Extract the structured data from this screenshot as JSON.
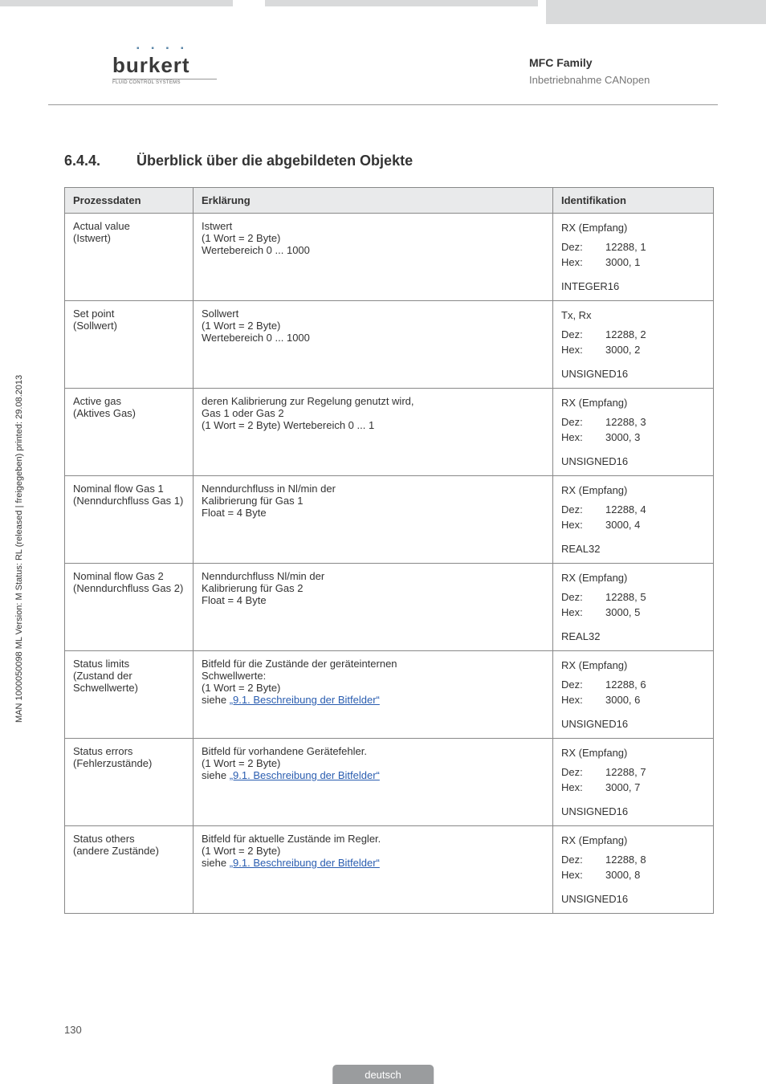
{
  "header": {
    "logo_text": "burkert",
    "logo_sub": "FLUID CONTROL SYSTEMS",
    "title": "MFC Family",
    "subtitle": "Inbetriebnahme CANopen"
  },
  "side_text": "MAN 1000050098 ML Version: M Status: RL (released | freigegeben) printed: 29.08.2013",
  "section": {
    "number": "6.4.4.",
    "title": "Überblick über die abgebildeten Objekte"
  },
  "table": {
    "headers": {
      "c1": "Prozessdaten",
      "c2": "Erklärung",
      "c3": "Identifikation"
    },
    "rows": [
      {
        "proz_l1": "Actual value",
        "proz_l2": "(Istwert)",
        "erkl_l1": "Istwert",
        "erkl_l2": "(1 Wort = 2 Byte)",
        "erkl_l3": "Wertebereich 0 ... 1000",
        "erkl_link_pre": "",
        "erkl_link": "",
        "id_head": "RX (Empfang)",
        "id_dez": "12288, 1",
        "id_hex": "3000, 1",
        "id_type": "INTEGER16"
      },
      {
        "proz_l1": "Set point",
        "proz_l2": "(Sollwert)",
        "erkl_l1": "Sollwert",
        "erkl_l2": "(1 Wort = 2 Byte)",
        "erkl_l3": "Wertebereich 0 ... 1000",
        "erkl_link_pre": "",
        "erkl_link": "",
        "id_head": "Tx, Rx",
        "id_dez": "12288, 2",
        "id_hex": "3000, 2",
        "id_type": "UNSIGNED16"
      },
      {
        "proz_l1": "Active gas",
        "proz_l2": "(Aktives Gas)",
        "erkl_l1": "deren Kalibrierung zur Regelung genutzt wird,",
        "erkl_l2": "Gas 1 oder Gas 2",
        "erkl_l3": "(1 Wort = 2 Byte) Wertebereich 0 ... 1",
        "erkl_link_pre": "",
        "erkl_link": "",
        "id_head": "RX (Empfang)",
        "id_dez": "12288, 3",
        "id_hex": "3000, 3",
        "id_type": "UNSIGNED16"
      },
      {
        "proz_l1": "Nominal flow Gas 1",
        "proz_l2": "(Nenndurchfluss Gas 1)",
        "erkl_l1": "Nenndurchfluss in Nl/min der",
        "erkl_l2": "Kalibrierung für Gas 1",
        "erkl_l3": "Float = 4 Byte",
        "erkl_link_pre": "",
        "erkl_link": "",
        "id_head": "RX (Empfang)",
        "id_dez": "12288, 4",
        "id_hex": "3000, 4",
        "id_type": "REAL32"
      },
      {
        "proz_l1": "Nominal flow Gas 2",
        "proz_l2": "(Nenndurchfluss Gas 2)",
        "erkl_l1": "Nenndurchfluss Nl/min der",
        "erkl_l2": "Kalibrierung für Gas 2",
        "erkl_l3": "Float = 4 Byte",
        "erkl_link_pre": "",
        "erkl_link": "",
        "id_head": "RX (Empfang)",
        "id_dez": "12288, 5",
        "id_hex": "3000, 5",
        "id_type": "REAL32"
      },
      {
        "proz_l1": "Status limits",
        "proz_l2": "(Zustand der Schwellwerte)",
        "erkl_l1": "Bitfeld für die Zustände der geräteinternen",
        "erkl_l2": "Schwellwerte:",
        "erkl_l3": "(1 Wort = 2 Byte)",
        "erkl_link_pre": "siehe ",
        "erkl_link": "„9.1. Beschreibung der Bitfelder“",
        "id_head": "RX (Empfang)",
        "id_dez": "12288, 6",
        "id_hex": "3000, 6",
        "id_type": "UNSIGNED16"
      },
      {
        "proz_l1": "Status errors",
        "proz_l2": "(Fehlerzustände)",
        "erkl_l1": "Bitfeld für vorhandene Gerätefehler.",
        "erkl_l2": "(1 Wort = 2 Byte)",
        "erkl_l3": "",
        "erkl_link_pre": "siehe  ",
        "erkl_link": "„9.1. Beschreibung der Bitfelder“",
        "id_head": "RX (Empfang)",
        "id_dez": "12288, 7",
        "id_hex": "3000, 7",
        "id_type": "UNSIGNED16"
      },
      {
        "proz_l1": "Status others",
        "proz_l2": "(andere Zustände)",
        "erkl_l1": "Bitfeld für aktuelle Zustände im Regler.",
        "erkl_l2": "(1 Wort = 2 Byte)",
        "erkl_l3": "",
        "erkl_link_pre": "siehe  ",
        "erkl_link": "„9.1. Beschreibung der Bitfelder“",
        "id_head": "RX (Empfang)",
        "id_dez": "12288, 8",
        "id_hex": "3000, 8",
        "id_type": "UNSIGNED16"
      }
    ]
  },
  "labels": {
    "dez": "Dez:",
    "hex": "Hex:"
  },
  "page_number": "130",
  "footer": "deutsch"
}
